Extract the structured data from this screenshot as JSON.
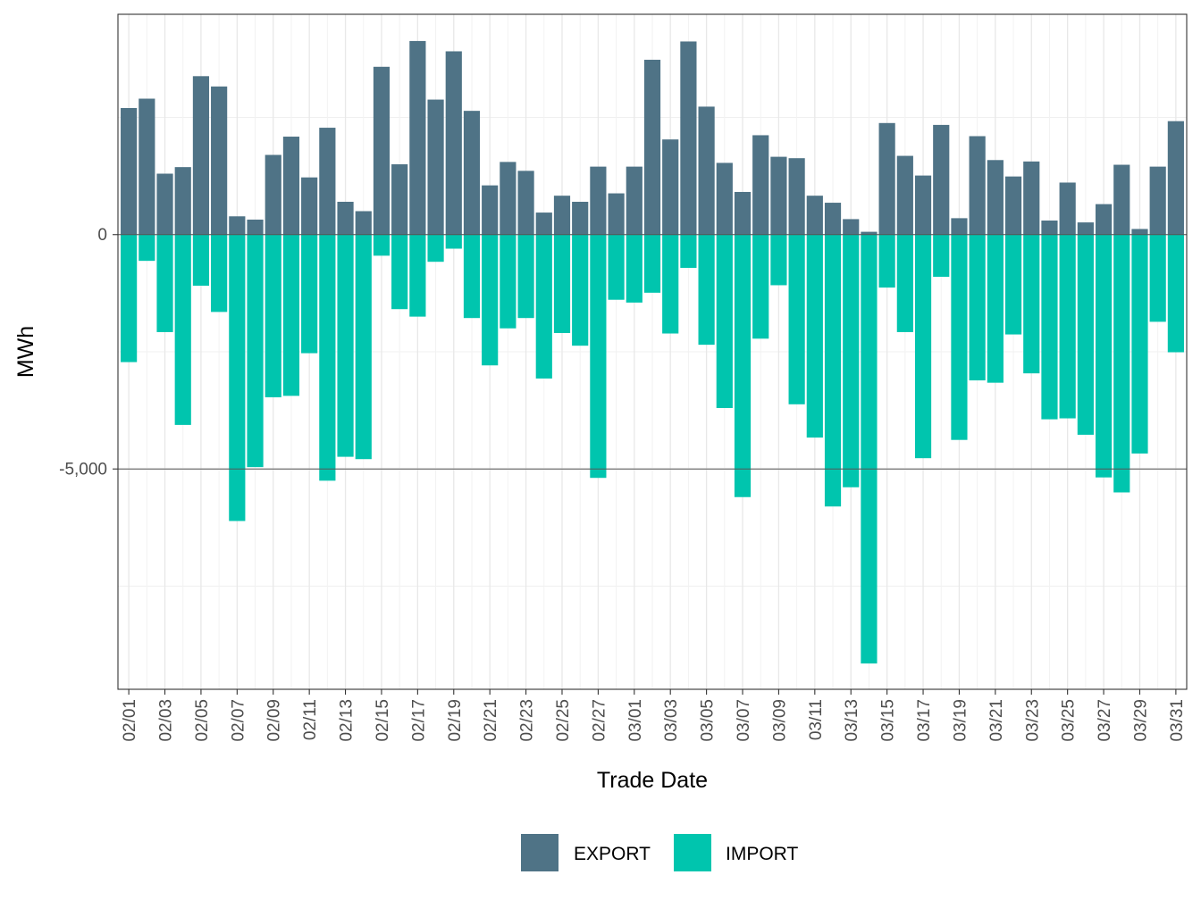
{
  "chart_data": {
    "type": "bar",
    "stacked": true,
    "xlabel": "Trade Date",
    "ylabel": "MWh",
    "ylim": [
      -9700,
      4700
    ],
    "y_ticks": [
      0,
      -5000
    ],
    "y_tick_labels": [
      "0",
      "-5,000"
    ],
    "grid": true,
    "legend_position": "bottom",
    "categories": [
      "02/01",
      "02/02",
      "02/03",
      "02/04",
      "02/05",
      "02/06",
      "02/07",
      "02/08",
      "02/09",
      "02/10",
      "02/11",
      "02/12",
      "02/13",
      "02/14",
      "02/15",
      "02/16",
      "02/17",
      "02/18",
      "02/19",
      "02/20",
      "02/21",
      "02/22",
      "02/23",
      "02/24",
      "02/25",
      "02/26",
      "02/27",
      "02/28",
      "03/01",
      "03/02",
      "03/03",
      "03/04",
      "03/05",
      "03/06",
      "03/07",
      "03/08",
      "03/09",
      "03/10",
      "03/11",
      "03/12",
      "03/13",
      "03/14",
      "03/15",
      "03/16",
      "03/17",
      "03/18",
      "03/19",
      "03/20",
      "03/21",
      "03/22",
      "03/23",
      "03/24",
      "03/25",
      "03/26",
      "03/27",
      "03/28",
      "03/29",
      "03/30",
      "03/31"
    ],
    "tick_labels": [
      "02/01",
      "02/03",
      "02/05",
      "02/07",
      "02/09",
      "02/11",
      "02/13",
      "02/15",
      "02/17",
      "02/19",
      "02/21",
      "02/23",
      "02/25",
      "02/27",
      "03/01",
      "03/03",
      "03/05",
      "03/07",
      "03/09",
      "03/11",
      "03/13",
      "03/15",
      "03/17",
      "03/19",
      "03/21",
      "03/23",
      "03/25",
      "03/27",
      "03/29",
      "03/31"
    ],
    "series": [
      {
        "name": "EXPORT",
        "color": "#4F7386",
        "values": [
          2700,
          2900,
          1300,
          1440,
          3380,
          3160,
          390,
          320,
          1700,
          2090,
          1220,
          2280,
          700,
          500,
          3580,
          1500,
          4130,
          2880,
          3910,
          2640,
          1050,
          1550,
          1360,
          470,
          830,
          700,
          1450,
          880,
          1450,
          3730,
          2030,
          4120,
          2730,
          1530,
          910,
          2120,
          1660,
          1630,
          830,
          680,
          330,
          60,
          2380,
          1680,
          1260,
          2340,
          350,
          2100,
          1590,
          1240,
          1560,
          300,
          1110,
          260,
          650,
          1490,
          120,
          1450,
          2420
        ]
      },
      {
        "name": "IMPORT",
        "color": "#00C5AE",
        "values": [
          -2720,
          -560,
          -2080,
          -4060,
          -1090,
          -1650,
          -6110,
          -4960,
          -3470,
          -3440,
          -2530,
          -5250,
          -4740,
          -4790,
          -450,
          -1590,
          -1750,
          -580,
          -300,
          -1780,
          -2790,
          -2000,
          -1780,
          -3070,
          -2100,
          -2370,
          -5190,
          -1390,
          -1450,
          -1240,
          -2110,
          -710,
          -2350,
          -3700,
          -5600,
          -2220,
          -1080,
          -3620,
          -4330,
          -5800,
          -5390,
          -9150,
          -1130,
          -2080,
          -4770,
          -900,
          -4380,
          -3110,
          -3160,
          -2130,
          -2960,
          -3940,
          -3920,
          -4270,
          -5180,
          -5500,
          -4670,
          -1860,
          -2510
        ]
      }
    ]
  }
}
